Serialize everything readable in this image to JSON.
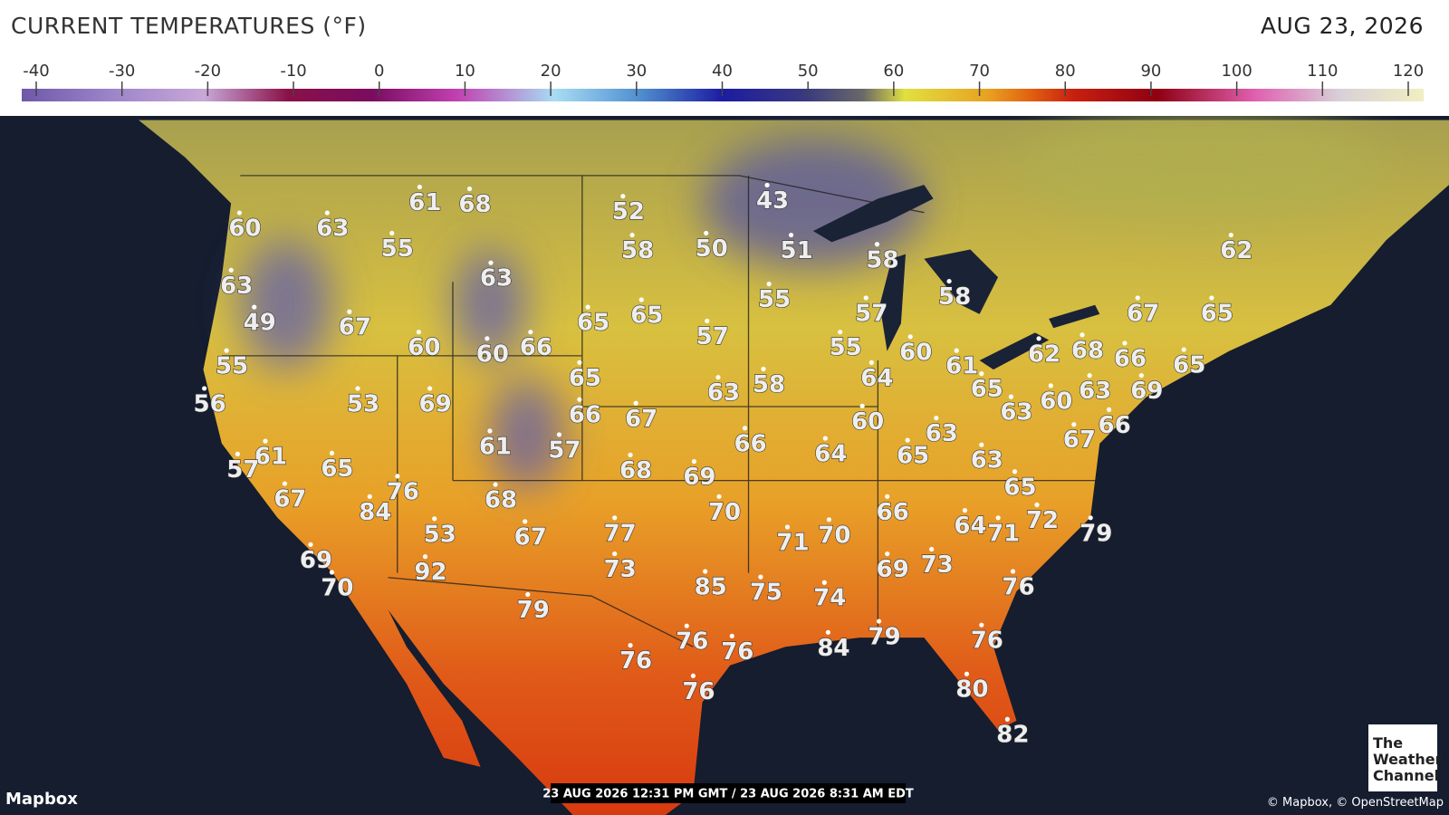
{
  "header": {
    "title": "CURRENT TEMPERATURES (°F)",
    "date": "AUG 23, 2026"
  },
  "legend": {
    "ticks": [
      -40,
      -30,
      -20,
      -10,
      0,
      10,
      20,
      30,
      40,
      50,
      60,
      70,
      80,
      90,
      100,
      110,
      120
    ]
  },
  "map": {
    "temperatures": [
      60,
      63,
      61,
      68,
      52,
      43,
      55,
      58,
      50,
      51,
      58,
      62,
      63,
      63,
      55,
      58,
      57,
      67,
      65,
      49,
      67,
      65,
      65,
      57,
      55,
      60,
      60,
      66,
      55,
      60,
      62,
      68,
      66,
      65,
      61,
      56,
      53,
      69,
      65,
      64,
      65,
      63,
      69,
      63,
      58,
      60,
      63,
      66,
      67,
      60,
      66,
      63,
      67,
      61,
      57,
      66,
      64,
      65,
      63,
      61,
      57,
      65,
      68,
      69,
      76,
      65,
      84,
      67,
      68,
      70,
      66,
      72,
      53,
      67,
      77,
      71,
      70,
      64,
      71,
      79,
      69,
      92,
      73,
      69,
      73,
      70,
      85,
      75,
      74,
      76,
      79,
      76,
      79,
      76,
      76,
      76,
      84,
      76,
      80,
      82
    ],
    "timestamp": "23 AUG 2026 12:31 PM GMT / 23 AUG 2026 8:31 AM EDT",
    "provider": "Mapbox",
    "attribution": "© Mapbox, © OpenStreetMap",
    "logo": [
      "The",
      "Weather",
      "Channel"
    ]
  }
}
